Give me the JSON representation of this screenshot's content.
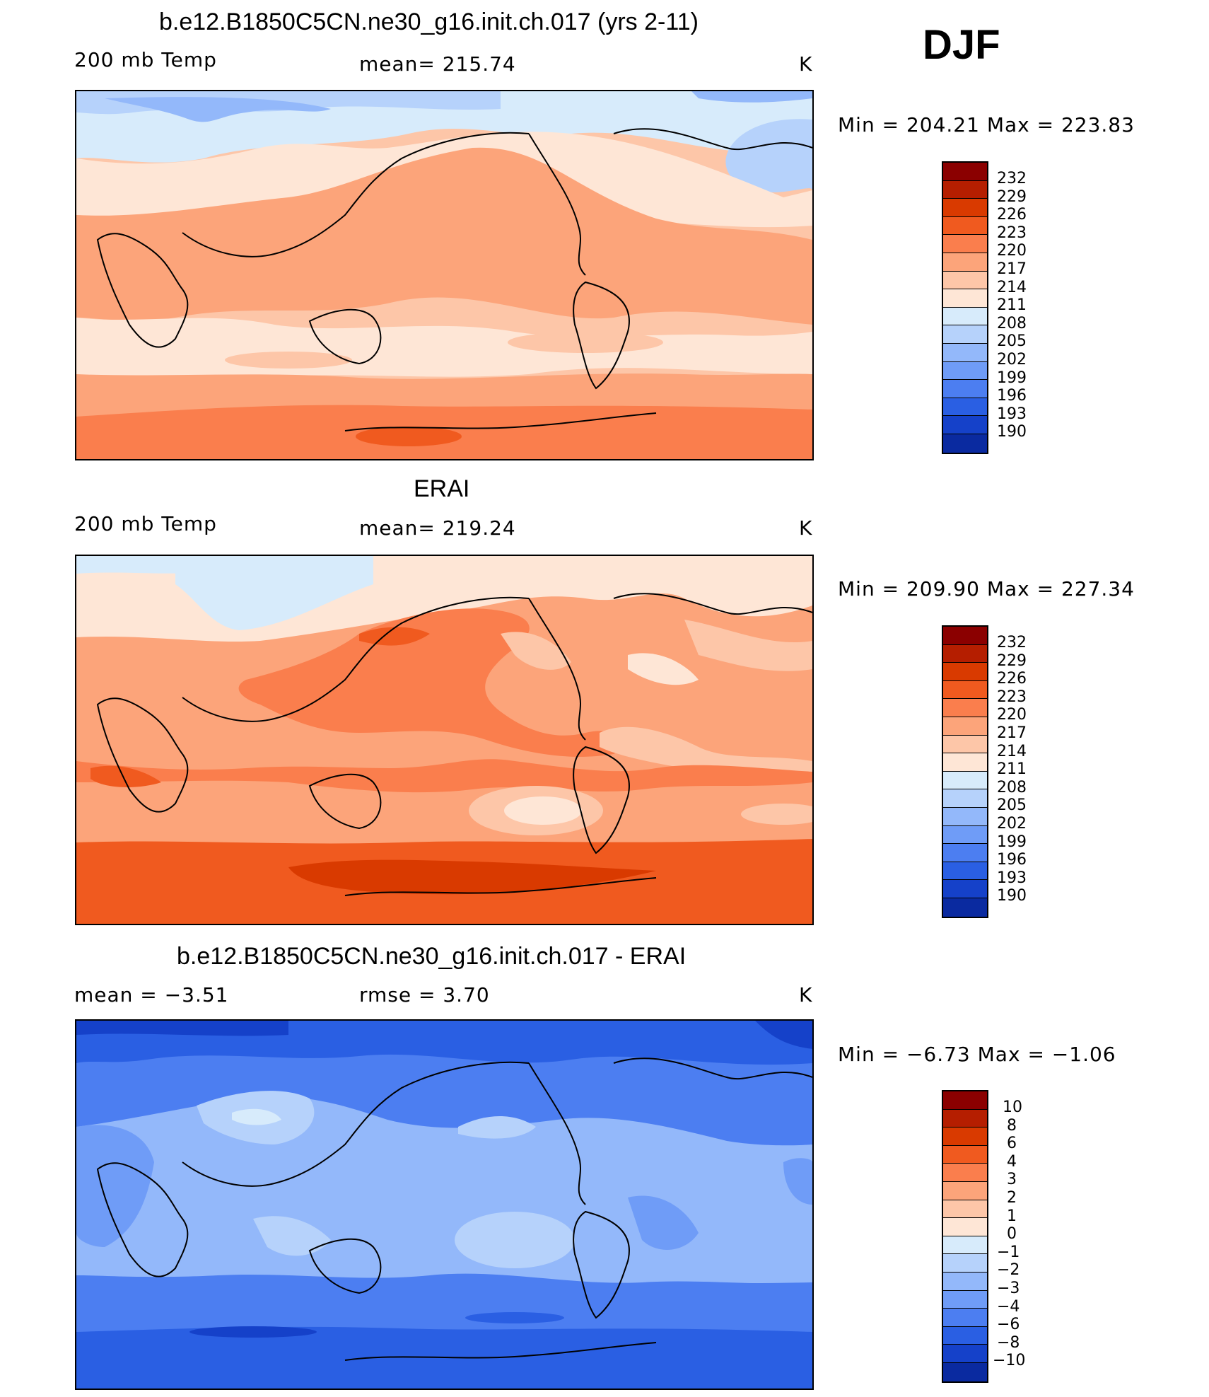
{
  "season": "DJF",
  "panels": [
    {
      "title": "b.e12.B1850C5CN.ne30_g16.init.ch.017 (yrs 2-11)",
      "left": "200 mb Temp",
      "center": "mean=  215.74",
      "right": "K",
      "minmax": "Min  =  204.21  Max  =  223.83"
    },
    {
      "title": "ERAI",
      "left": "200 mb Temp",
      "center": "mean=  219.24",
      "right": "K",
      "minmax": "Min  =  209.90  Max  =  227.34"
    },
    {
      "title": "b.e12.B1850C5CN.ne30_g16.init.ch.017 - ERAI",
      "left": "mean  =     −3.51",
      "center": "rmse  =      3.70",
      "right": "K",
      "minmax": "Min  =    −6.73  Max  =    −1.06"
    }
  ],
  "colorbars": {
    "temp_labels": [
      "232",
      "229",
      "226",
      "223",
      "220",
      "217",
      "214",
      "211",
      "208",
      "205",
      "202",
      "199",
      "196",
      "193",
      "190"
    ],
    "diff_labels": [
      "10",
      "8",
      "6",
      "4",
      "3",
      "2",
      "1",
      "0",
      "−1",
      "−2",
      "−3",
      "−4",
      "−6",
      "−8",
      "−10"
    ],
    "colors": [
      "#8b0000",
      "#b51e00",
      "#d93a00",
      "#f05a1f",
      "#fa7e4d",
      "#fca47a",
      "#fdc6a8",
      "#fee6d6",
      "#d7ebfb",
      "#b6d2fb",
      "#93b8fa",
      "#6f9cf7",
      "#4c7ef1",
      "#2a5fe3",
      "#1541c9",
      "#0a2aa0",
      "#03107a"
    ]
  }
}
